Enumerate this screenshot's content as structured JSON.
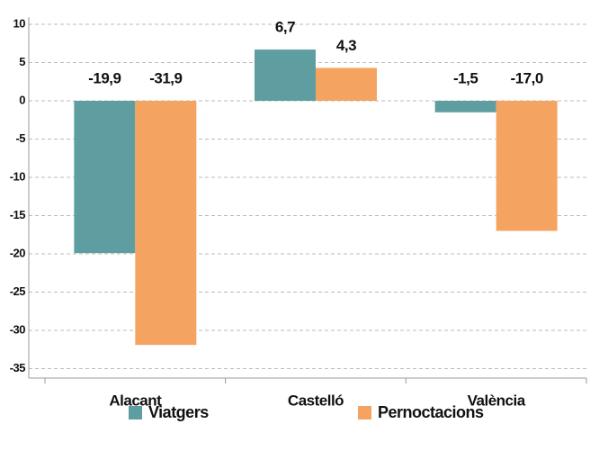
{
  "chart_data": {
    "type": "bar",
    "categories": [
      "Alacant",
      "Castelló",
      "València"
    ],
    "series": [
      {
        "name": "Viatgers",
        "color": "#5f9ea0",
        "values": [
          -19.9,
          6.7,
          -1.5
        ],
        "value_labels": [
          "-19,9",
          "6,7",
          "-1,5"
        ]
      },
      {
        "name": "Pernoctacions",
        "color": "#f4a460",
        "values": [
          -31.9,
          4.3,
          -17.0
        ],
        "value_labels": [
          "-31,9",
          "4,3",
          "-17,0"
        ]
      }
    ],
    "ylim": [
      -36,
      10
    ],
    "yticks": [
      10,
      5,
      0,
      -5,
      -10,
      -15,
      -20,
      -25,
      -30,
      -35
    ],
    "grid": true,
    "legend": "bottom"
  }
}
